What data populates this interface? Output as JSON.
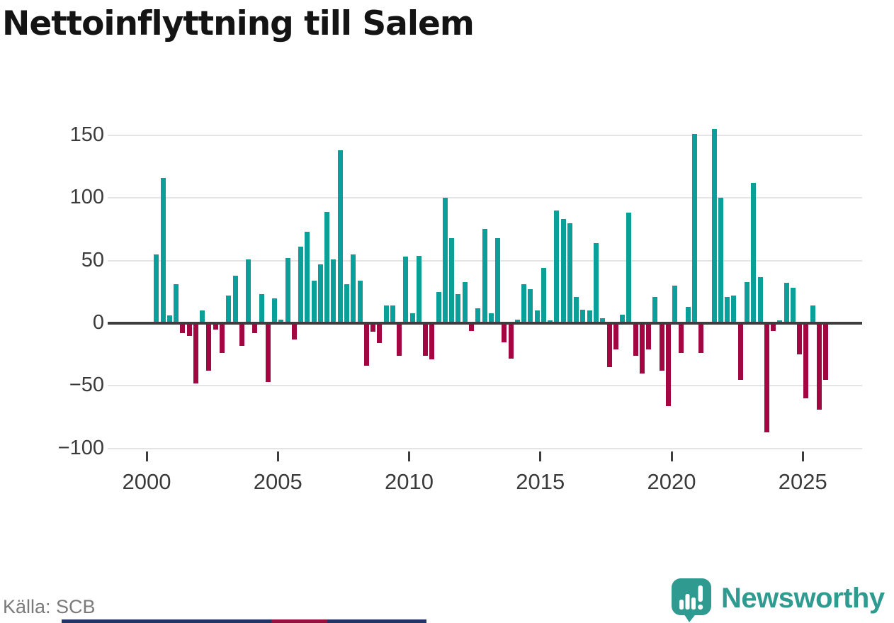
{
  "title": "Nettoinflyttning till Salem",
  "source": "Källa: SCB",
  "branding": {
    "name": "Newsworthy",
    "icon": "newsworthy-speech-bubble-bar-chart-icon",
    "text_color": "#2f9a90",
    "icon_color": "#2f9a90"
  },
  "footer_strip": {
    "navy_color": "#22356b",
    "red_color": "#97103f"
  },
  "chart_data": {
    "type": "bar",
    "title": "Nettoinflyttning till Salem",
    "xlabel": "",
    "ylabel": "",
    "ylim": [
      -100,
      150
    ],
    "yticks": [
      150,
      100,
      50,
      0,
      -50,
      -100
    ],
    "xticks": [
      2000,
      2005,
      2010,
      2015,
      2020,
      2025
    ],
    "grid": "horizontal",
    "legend": "none",
    "positive_color": "#0aa099",
    "negative_color": "#a30742",
    "quarters": [
      "2000Q2",
      "2000Q3",
      "2000Q4",
      "2001Q1",
      "2001Q2",
      "2001Q3",
      "2001Q4",
      "2002Q1",
      "2002Q2",
      "2002Q3",
      "2002Q4",
      "2003Q1",
      "2003Q2",
      "2003Q3",
      "2003Q4",
      "2004Q1",
      "2004Q2",
      "2004Q3",
      "2004Q4",
      "2005Q1",
      "2005Q2",
      "2005Q3",
      "2005Q4",
      "2006Q1",
      "2006Q2",
      "2006Q3",
      "2006Q4",
      "2007Q1",
      "2007Q2",
      "2007Q3",
      "2007Q4",
      "2008Q1",
      "2008Q2",
      "2008Q3",
      "2008Q4",
      "2009Q1",
      "2009Q2",
      "2009Q3",
      "2009Q4",
      "2010Q1",
      "2010Q2",
      "2010Q3",
      "2010Q4",
      "2011Q1",
      "2011Q2",
      "2011Q3",
      "2011Q4",
      "2012Q1",
      "2012Q2",
      "2012Q3",
      "2012Q4",
      "2013Q1",
      "2013Q2",
      "2013Q3",
      "2013Q4",
      "2014Q1",
      "2014Q2",
      "2014Q3",
      "2014Q4",
      "2015Q1",
      "2015Q2",
      "2015Q3",
      "2015Q4",
      "2016Q1",
      "2016Q2",
      "2016Q3",
      "2016Q4",
      "2017Q1",
      "2017Q2",
      "2017Q3",
      "2017Q4",
      "2018Q1",
      "2018Q2",
      "2018Q3",
      "2018Q4",
      "2019Q1",
      "2019Q2",
      "2019Q3",
      "2019Q4",
      "2020Q1",
      "2020Q2",
      "2020Q3",
      "2020Q4",
      "2021Q1",
      "2021Q2",
      "2021Q3",
      "2021Q4",
      "2022Q1",
      "2022Q2",
      "2022Q3",
      "2022Q4",
      "2023Q1",
      "2023Q2",
      "2023Q3",
      "2023Q4",
      "2024Q1",
      "2024Q2",
      "2024Q3",
      "2024Q4",
      "2025Q1",
      "2025Q2",
      "2025Q3",
      "2025Q4"
    ],
    "values": [
      55,
      116,
      6,
      31,
      -8,
      -10,
      -48,
      10,
      -38,
      -5,
      -24,
      22,
      38,
      -18,
      51,
      -8,
      23,
      -47,
      20,
      3,
      52,
      -13,
      61,
      73,
      34,
      47,
      89,
      51,
      138,
      31,
      55,
      34,
      -34,
      -7,
      -16,
      14,
      14,
      -26,
      53,
      8,
      54,
      -26,
      -29,
      25,
      100,
      68,
      23,
      33,
      -6,
      12,
      75,
      8,
      68,
      -15,
      -28,
      3,
      31,
      27,
      10,
      44,
      2,
      90,
      83,
      80,
      21,
      11,
      10,
      64,
      4,
      -35,
      -21,
      7,
      88,
      -26,
      -40,
      -21,
      21,
      -38,
      -66,
      30,
      -24,
      13,
      151,
      -24,
      0,
      155,
      100,
      21,
      22,
      -45,
      33,
      112,
      37,
      -87,
      -6,
      2,
      32,
      28,
      -25,
      -60,
      14,
      -69,
      -45
    ]
  }
}
